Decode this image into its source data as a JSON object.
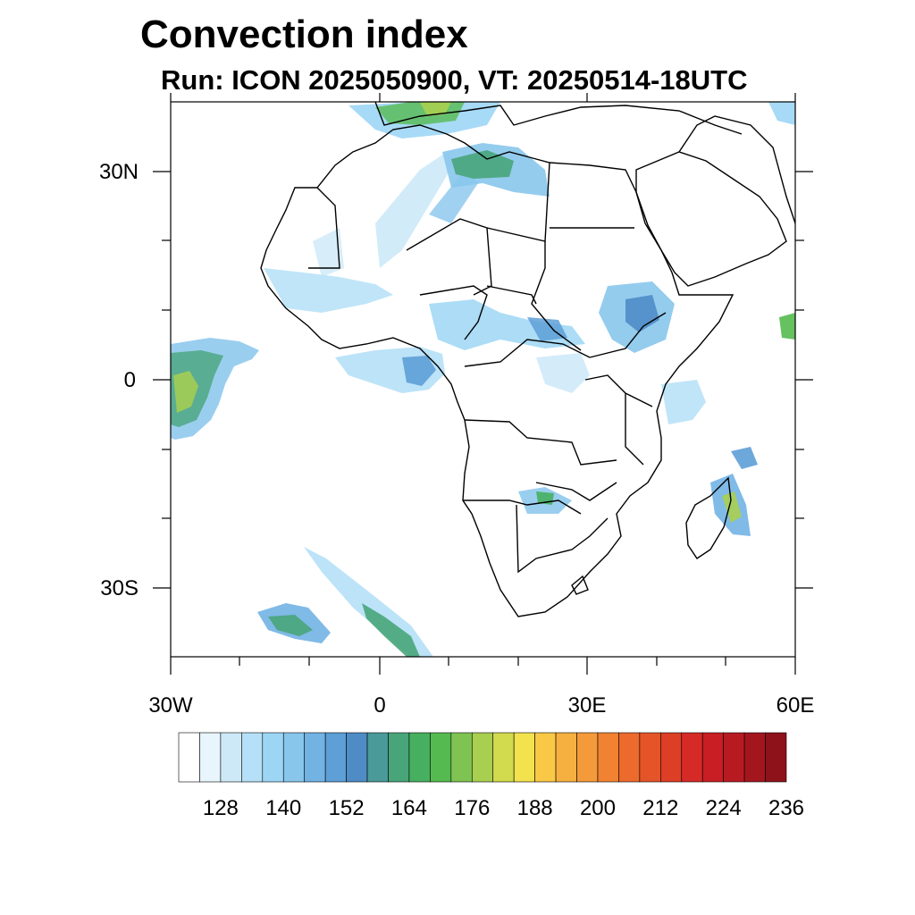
{
  "title": "Convection index",
  "subtitle": "Run: ICON 2025050900,  VT: 20250514-18UTC",
  "axes": {
    "lon_labels": [
      "30W",
      "0",
      "30E",
      "60E"
    ],
    "lat_labels": [
      "30N",
      "0",
      "30S"
    ],
    "lon_range": [
      -30,
      60
    ],
    "lat_range": [
      -40,
      40
    ]
  },
  "colorbar": {
    "labels": [
      "128",
      "140",
      "152",
      "164",
      "176",
      "188",
      "200",
      "212",
      "224",
      "236"
    ],
    "colors": [
      "#ffffff",
      "#e8f5fc",
      "#cde9f8",
      "#b5e0f7",
      "#9dd6f5",
      "#88c6ec",
      "#72b3e4",
      "#5d9fd6",
      "#4f8cc6",
      "#4a9a9a",
      "#48a57a",
      "#46b060",
      "#55ba50",
      "#7fc452",
      "#a8cf50",
      "#d2da4e",
      "#f2e24e",
      "#f9c846",
      "#f6b040",
      "#f59a3a",
      "#f08232",
      "#ec6a2c",
      "#e45428",
      "#dc3e26",
      "#d52a26",
      "#c81e24",
      "#b81a22",
      "#a4161e",
      "#8e121a"
    ]
  },
  "colors": {
    "outline": "#000000",
    "ocean": "#ffffff"
  }
}
